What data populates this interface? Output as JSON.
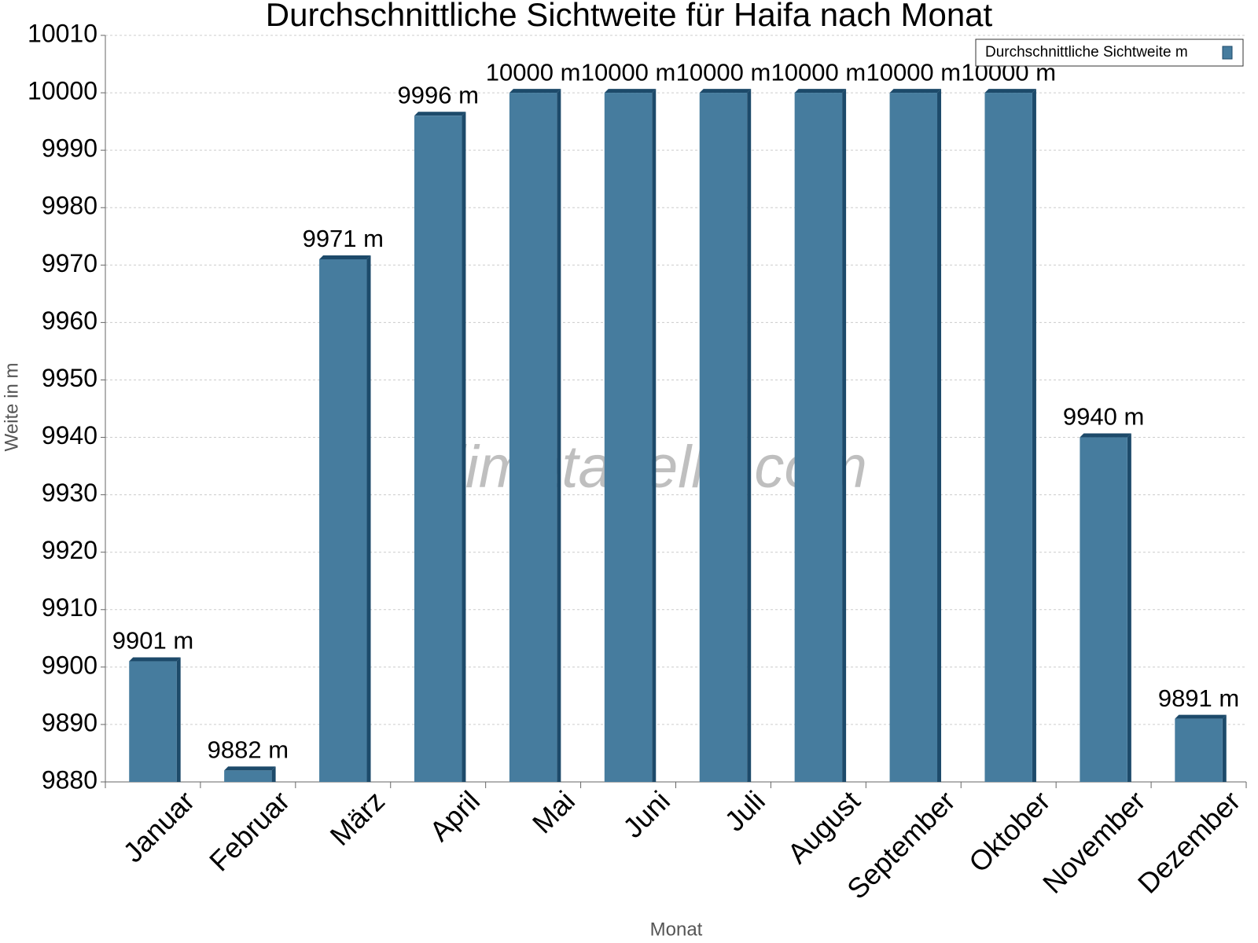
{
  "chart_data": {
    "type": "bar",
    "title": "Durchschnittliche Sichtweite für Haifa nach Monat",
    "x_label": "Monat",
    "y_label": "Weite in m",
    "watermark": "klimatabelle.com",
    "categories": [
      "Januar",
      "Februar",
      "März",
      "April",
      "Mai",
      "Juni",
      "Juli",
      "August",
      "September",
      "Oktober",
      "November",
      "Dezember"
    ],
    "series": [
      {
        "name": "Durchschnittliche Sichtweite m",
        "color": "#467c9e",
        "values": [
          9901,
          9882,
          9971,
          9996,
          10000,
          10000,
          10000,
          10000,
          10000,
          10000,
          9940,
          9891
        ],
        "value_labels": [
          "9901 m",
          "9882 m",
          "9971 m",
          "9996 m",
          "10000 m",
          "10000 m",
          "10000 m",
          "10000 m",
          "10000 m",
          "10000 m",
          "9940 m",
          "9891 m"
        ]
      }
    ],
    "ylim": [
      9880,
      10010
    ],
    "yticks": [
      9880,
      9890,
      9900,
      9910,
      9920,
      9930,
      9940,
      9950,
      9960,
      9970,
      9980,
      9990,
      10000,
      10010
    ],
    "grid": true,
    "legend": "top-right"
  }
}
